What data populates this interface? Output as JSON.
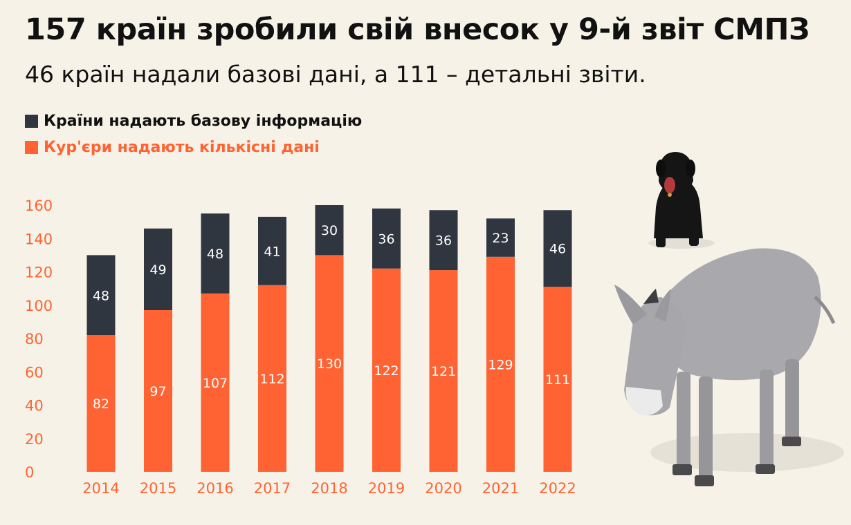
{
  "title": "157 країн зробили свій внесок у 9-й звіт СМПЗ",
  "subtitle": "46 країн надали базові дані, а 111 – детальні звіти.",
  "legend": [
    {
      "label": "Країни надають базову інформацію",
      "color": "#2f3640"
    },
    {
      "label": "Кур'єри надають кількісні дані",
      "color": "#ff6333"
    }
  ],
  "chart_data": {
    "type": "bar",
    "stacked": true,
    "categories": [
      "2014",
      "2015",
      "2016",
      "2017",
      "2018",
      "2019",
      "2020",
      "2021",
      "2022"
    ],
    "series": [
      {
        "name": "Кур'єри надають кількісні дані",
        "values": [
          82,
          97,
          107,
          112,
          130,
          122,
          121,
          129,
          111
        ],
        "color": "#ff6333"
      },
      {
        "name": "Країни надають базову інформацію",
        "values": [
          48,
          49,
          48,
          41,
          30,
          36,
          36,
          23,
          46
        ],
        "color": "#2f3640"
      }
    ],
    "yticks": [
      0,
      20,
      40,
      60,
      80,
      100,
      120,
      140,
      160
    ],
    "ylim": [
      0,
      160
    ],
    "axis_color": "#ff6333",
    "grid": false
  }
}
